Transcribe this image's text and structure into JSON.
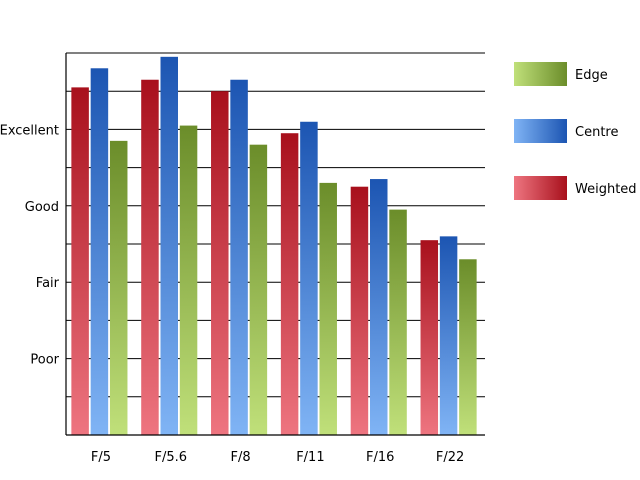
{
  "chart_data": {
    "type": "bar",
    "categories": [
      "F/5",
      "F/5.6",
      "F/8",
      "F/11",
      "F/16",
      "F/22"
    ],
    "y_tick_labels": [
      "Poor",
      "Fair",
      "Good",
      "Excellent"
    ],
    "y_tick_values": [
      2,
      4,
      6,
      8
    ],
    "ylim": [
      0,
      10
    ],
    "grid": true,
    "legend_position": "right",
    "series": [
      {
        "name": "Weighted",
        "values": [
          9.1,
          9.3,
          9.0,
          7.9,
          6.5,
          5.1
        ],
        "color_light": "#ee7580",
        "color_dark": "#a8101c"
      },
      {
        "name": "Centre",
        "values": [
          9.6,
          9.9,
          9.3,
          8.2,
          6.7,
          5.2
        ],
        "color_light": "#80b4f5",
        "color_dark": "#1c55b2"
      },
      {
        "name": "Edge",
        "values": [
          7.7,
          8.1,
          7.6,
          6.6,
          5.9,
          4.6
        ],
        "color_light": "#c0e07a",
        "color_dark": "#6b8d2a"
      }
    ]
  },
  "legend": {
    "items": [
      {
        "label": "Edge",
        "series": 2
      },
      {
        "label": "Centre",
        "series": 1
      },
      {
        "label": "Weighted",
        "series": 0
      }
    ]
  }
}
